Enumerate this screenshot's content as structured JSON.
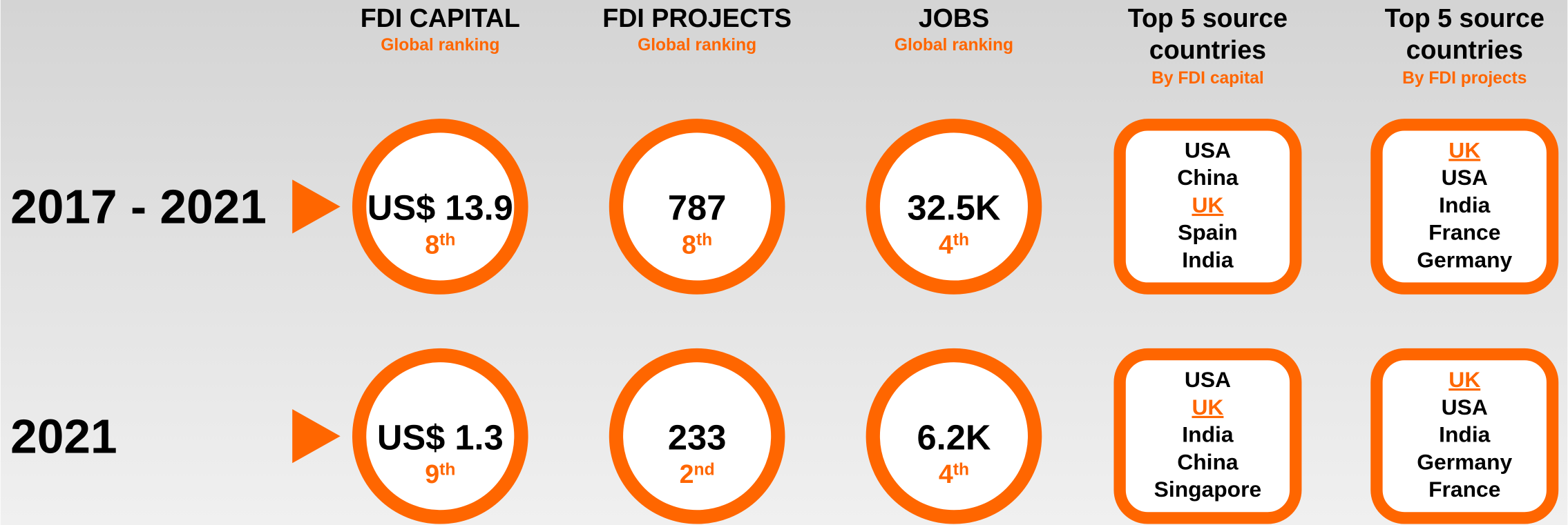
{
  "columns": [
    {
      "title_lines": [
        "FDI CAPITAL"
      ],
      "subtitle": "Global ranking"
    },
    {
      "title_lines": [
        "FDI PROJECTS"
      ],
      "subtitle": "Global ranking"
    },
    {
      "title_lines": [
        "JOBS"
      ],
      "subtitle": "Global ranking"
    },
    {
      "title_lines": [
        "Top 5 source",
        "countries"
      ],
      "subtitle": "By FDI capital"
    },
    {
      "title_lines": [
        "Top 5 source",
        "countries"
      ],
      "subtitle": "By FDI projects"
    }
  ],
  "highlight_country": "UK",
  "rows": [
    {
      "label": "2017 - 2021",
      "metrics": [
        {
          "value": "US$ 13.9",
          "rank": "8",
          "suffix": "th"
        },
        {
          "value": "787",
          "rank": "8",
          "suffix": "th"
        },
        {
          "value": "32.5K",
          "rank": "4",
          "suffix": "th"
        }
      ],
      "countries": [
        [
          "USA",
          "China",
          "UK",
          "Spain",
          "India"
        ],
        [
          "UK",
          "USA",
          "India",
          "France",
          "Germany"
        ]
      ]
    },
    {
      "label": "2021",
      "metrics": [
        {
          "value": "US$ 1.3",
          "rank": "9",
          "suffix": "th"
        },
        {
          "value": "233",
          "rank": "2",
          "suffix": "nd"
        },
        {
          "value": "6.2K",
          "rank": "4",
          "suffix": "th"
        }
      ],
      "countries": [
        [
          "USA",
          "UK",
          "India",
          "China",
          "Singapore"
        ],
        [
          "UK",
          "USA",
          "India",
          "Germany",
          "France"
        ]
      ]
    }
  ]
}
